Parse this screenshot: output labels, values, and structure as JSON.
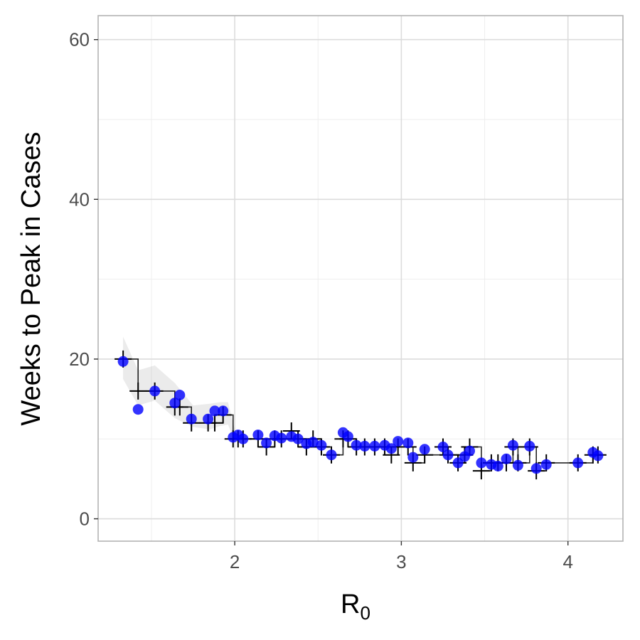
{
  "chart_data": {
    "type": "scatter",
    "title": "",
    "xlabel": {
      "main": "R",
      "sub": "0"
    },
    "ylabel": "Weeks to Peak in Cases",
    "xlim": [
      1.18,
      4.33
    ],
    "ylim": [
      -2.8,
      63
    ],
    "x_ticks": [
      2,
      3,
      4
    ],
    "x_tick_labels": [
      "2",
      "3",
      "4"
    ],
    "y_ticks": [
      0,
      20,
      40,
      60
    ],
    "y_tick_labels": [
      "0",
      "20",
      "40",
      "60"
    ],
    "x_minor": [
      1.5,
      2.5,
      3.5
    ],
    "y_minor": [
      10,
      30,
      50
    ],
    "grid": true,
    "colors": {
      "points": "#0000ff",
      "observed": "#000000",
      "band": "#999999",
      "panel_border": "#b3b3b3",
      "grid_major": "#dcdcdc",
      "grid_minor": "#eeeeee"
    },
    "series": [
      {
        "type": "ribbon",
        "x": [
          1.33,
          1.42,
          1.52,
          1.64,
          1.75,
          1.85,
          1.91,
          1.96,
          2.0
        ],
        "lower": [
          17.5,
          14.2,
          14.8,
          12.6,
          11.5,
          11.2,
          11.6,
          11.8,
          9.6
        ],
        "upper": [
          22.8,
          18.6,
          19.2,
          17.0,
          14.2,
          14.4,
          14.6,
          14.6,
          11.2
        ]
      },
      {
        "type": "scatter-points",
        "x": [
          1.33,
          1.42,
          1.52,
          1.64,
          1.67,
          1.74,
          1.84,
          1.88,
          1.93,
          1.99,
          2.02,
          2.05,
          2.14,
          2.19,
          2.24,
          2.28,
          2.34,
          2.38,
          2.43,
          2.47,
          2.52,
          2.58,
          2.65,
          2.68,
          2.73,
          2.78,
          2.84,
          2.9,
          2.94,
          2.98,
          3.04,
          3.07,
          3.14,
          3.25,
          3.28,
          3.34,
          3.38,
          3.41,
          3.48,
          3.54,
          3.58,
          3.63,
          3.67,
          3.7,
          3.77,
          3.81,
          3.87,
          4.06,
          4.15,
          4.18
        ],
        "y": [
          19.7,
          13.7,
          16.0,
          14.5,
          15.5,
          12.5,
          12.5,
          13.5,
          13.5,
          10.2,
          10.5,
          10.0,
          10.5,
          9.5,
          10.4,
          10.1,
          10.3,
          10.0,
          9.4,
          9.6,
          9.2,
          8.0,
          10.8,
          10.3,
          9.2,
          9.1,
          9.1,
          9.2,
          8.8,
          9.7,
          9.5,
          7.7,
          8.7,
          9.0,
          8.0,
          7.0,
          7.8,
          8.5,
          7.0,
          6.8,
          6.6,
          7.5,
          9.2,
          6.7,
          9.1,
          6.3,
          6.8,
          7.0,
          8.3,
          7.9
        ]
      },
      {
        "type": "observed-step",
        "x": [
          1.33,
          1.42,
          1.52,
          1.64,
          1.67,
          1.74,
          1.84,
          1.88,
          1.93,
          1.99,
          2.02,
          2.05,
          2.14,
          2.19,
          2.24,
          2.28,
          2.34,
          2.38,
          2.43,
          2.47,
          2.52,
          2.58,
          2.65,
          2.68,
          2.73,
          2.78,
          2.84,
          2.9,
          2.94,
          2.98,
          3.04,
          3.07,
          3.14,
          3.25,
          3.28,
          3.34,
          3.38,
          3.41,
          3.48,
          3.54,
          3.58,
          3.63,
          3.67,
          3.7,
          3.77,
          3.81,
          3.87,
          4.06,
          4.15,
          4.18
        ],
        "y": [
          20,
          16,
          16,
          14,
          14,
          12,
          12,
          12,
          13,
          10,
          10,
          10,
          10,
          9,
          10,
          10,
          11,
          10,
          9,
          10,
          9,
          8,
          10,
          10,
          9,
          9,
          9,
          9,
          8,
          9,
          9,
          7,
          8,
          9,
          8,
          7,
          8,
          9,
          6,
          7,
          7,
          7,
          9,
          7,
          9,
          6,
          7,
          7,
          8,
          8
        ]
      }
    ]
  }
}
